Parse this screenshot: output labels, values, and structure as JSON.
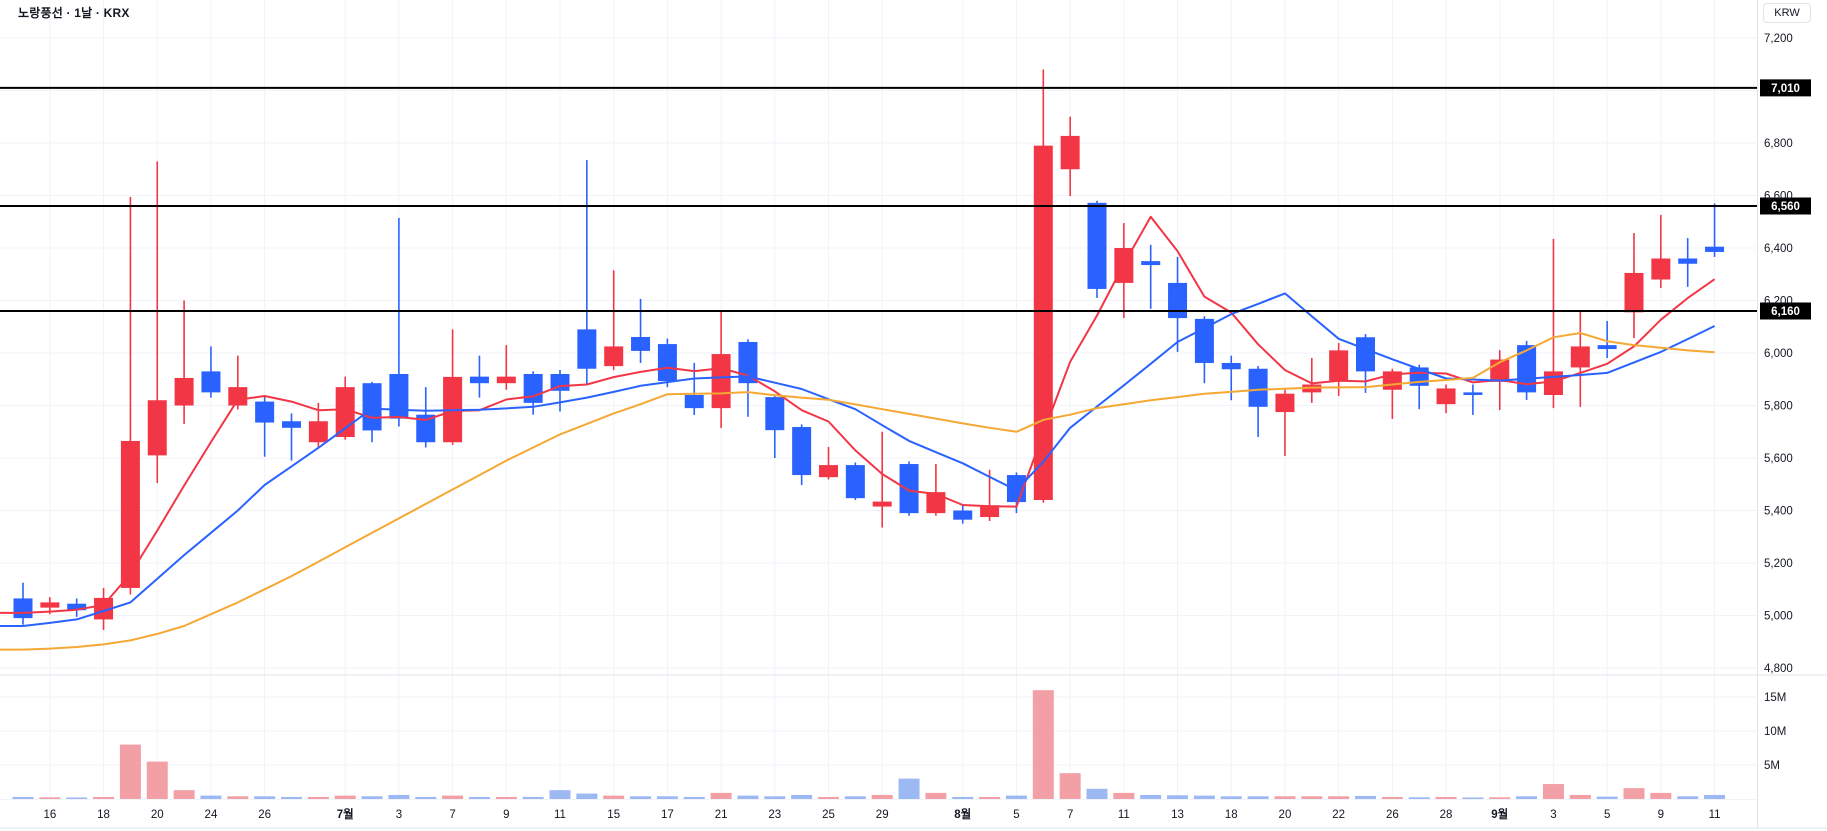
{
  "header": {
    "symbol_title": "노랑풍선 · 1날 · KRX"
  },
  "price_axis": {
    "currency_label": "KRW",
    "labels": [
      {
        "value": 7200,
        "label": "7,200"
      },
      {
        "value": 6800,
        "label": "6,800"
      },
      {
        "value": 6600,
        "label": "6,600"
      },
      {
        "value": 6400,
        "label": "6,400"
      },
      {
        "value": 6200,
        "label": "6,200"
      },
      {
        "value": 6000,
        "label": "6,000"
      },
      {
        "value": 5800,
        "label": "5,800"
      },
      {
        "value": 5600,
        "label": "5,600"
      },
      {
        "value": 5400,
        "label": "5,400"
      },
      {
        "value": 5200,
        "label": "5,200"
      },
      {
        "value": 5000,
        "label": "5,000"
      },
      {
        "value": 4800,
        "label": "4,800"
      }
    ],
    "grid_values": [
      4800,
      5000,
      5200,
      5400,
      5600,
      5800,
      6000,
      6200,
      6400,
      6600,
      6800,
      7000,
      7200
    ]
  },
  "volume_axis": {
    "ticks": [
      {
        "value": 15,
        "label": "15M"
      },
      {
        "value": 10,
        "label": "10M"
      },
      {
        "value": 5,
        "label": "5M"
      }
    ]
  },
  "colors": {
    "up": "#f23645",
    "down": "#2962ff",
    "vol_up": "#f2a0a6",
    "vol_down": "#9db9f4",
    "ma_fast": "#f23645",
    "ma_mid": "#2962ff",
    "ma_slow": "#f5a833",
    "grid": "#f0f3fa",
    "separator": "#e0e3eb",
    "axis_text": "#131722",
    "level_line": "#000000",
    "level_badge_bg": "#000000",
    "level_badge_text": "#ffffff"
  },
  "chart_data": {
    "type": "candlestick",
    "title": "노랑풍선 · 1날 · KRX",
    "symbol": "노랑풍선",
    "interval": "1날",
    "exchange": "KRX",
    "currency": "KRW",
    "ylim": [
      4800,
      7230
    ],
    "price_grid_step": 200,
    "grid": true,
    "legend_position": "none",
    "volume_unit": "M",
    "horizontal_levels": [
      {
        "price": 7010,
        "label": "7,010"
      },
      {
        "price": 6560,
        "label": "6,560"
      },
      {
        "price": 6160,
        "label": "6,160"
      }
    ],
    "candles_format": [
      "date",
      "open",
      "high",
      "low",
      "close",
      "volume_millions"
    ],
    "candles": [
      [
        "6/13",
        5065,
        5125,
        4965,
        4990,
        0.3
      ],
      [
        "6/16",
        5030,
        5070,
        5005,
        5050,
        0.25
      ],
      [
        "6/17",
        5045,
        5065,
        4995,
        5020,
        0.2
      ],
      [
        "6/18",
        4985,
        5105,
        4945,
        5067,
        0.3
      ],
      [
        "6/19",
        5105,
        6595,
        5080,
        5665,
        8.0
      ],
      [
        "6/20",
        5610,
        6730,
        5505,
        5820,
        5.5
      ],
      [
        "6/23",
        5800,
        6200,
        5730,
        5905,
        1.3
      ],
      [
        "6/24",
        5930,
        6025,
        5830,
        5850,
        0.5
      ],
      [
        "6/25",
        5800,
        5990,
        5785,
        5870,
        0.4
      ],
      [
        "6/26",
        5815,
        5835,
        5605,
        5735,
        0.4
      ],
      [
        "6/27",
        5740,
        5770,
        5590,
        5715,
        0.3
      ],
      [
        "6/30",
        5660,
        5810,
        5640,
        5740,
        0.3
      ],
      [
        "7/1",
        5680,
        5910,
        5670,
        5870,
        0.5
      ],
      [
        "7/2",
        5885,
        5890,
        5660,
        5705,
        0.4
      ],
      [
        "7/3",
        5920,
        6515,
        5720,
        5750,
        0.6
      ],
      [
        "7/4",
        5765,
        5870,
        5640,
        5660,
        0.3
      ],
      [
        "7/7",
        5660,
        6090,
        5650,
        5909,
        0.5
      ],
      [
        "7/8",
        5910,
        5990,
        5830,
        5885,
        0.3
      ],
      [
        "7/9",
        5885,
        6030,
        5860,
        5910,
        0.3
      ],
      [
        "7/10",
        5920,
        5930,
        5765,
        5810,
        0.3
      ],
      [
        "7/11",
        5920,
        5935,
        5777,
        5856,
        1.3
      ],
      [
        "7/14",
        6090,
        6735,
        5878,
        5940,
        0.8
      ],
      [
        "7/15",
        5950,
        6315,
        5935,
        6025,
        0.5
      ],
      [
        "7/16",
        6061,
        6206,
        5962,
        6008,
        0.4
      ],
      [
        "7/17",
        6034,
        6055,
        5870,
        5893,
        0.4
      ],
      [
        "7/18",
        5840,
        5962,
        5764,
        5790,
        0.3
      ],
      [
        "7/21",
        5790,
        6164,
        5714,
        5996,
        0.9
      ],
      [
        "7/22",
        6042,
        6052,
        5757,
        5885,
        0.5
      ],
      [
        "7/23",
        5832,
        5842,
        5600,
        5706,
        0.4
      ],
      [
        "7/24",
        5718,
        5728,
        5497,
        5535,
        0.6
      ],
      [
        "7/25",
        5527,
        5642,
        5518,
        5573,
        0.3
      ],
      [
        "7/28",
        5573,
        5583,
        5440,
        5447,
        0.4
      ],
      [
        "7/29",
        5415,
        5700,
        5335,
        5434,
        0.6
      ],
      [
        "7/30",
        5577,
        5587,
        5380,
        5390,
        3.0
      ],
      [
        "7/31",
        5390,
        5577,
        5380,
        5470,
        0.9
      ],
      [
        "8/1",
        5400,
        5420,
        5350,
        5365,
        0.3
      ],
      [
        "8/4",
        5375,
        5555,
        5360,
        5420,
        0.3
      ],
      [
        "8/5",
        5535,
        5545,
        5390,
        5432,
        0.5
      ],
      [
        "8/6",
        5440,
        7080,
        5430,
        6790,
        16.0
      ],
      [
        "8/7",
        6700,
        6900,
        6598,
        6827,
        3.8
      ],
      [
        "8/8",
        6572,
        6580,
        6210,
        6244,
        1.5
      ],
      [
        "8/11",
        6267,
        6495,
        6133,
        6400,
        0.9
      ],
      [
        "8/12",
        6350,
        6412,
        6168,
        6335,
        0.6
      ],
      [
        "8/13",
        6267,
        6366,
        6004,
        6133,
        0.55
      ],
      [
        "8/14",
        6130,
        6140,
        5885,
        5962,
        0.5
      ],
      [
        "8/18",
        5962,
        5990,
        5820,
        5938,
        0.4
      ],
      [
        "8/19",
        5940,
        5950,
        5680,
        5795,
        0.4
      ],
      [
        "8/20",
        5775,
        5860,
        5608,
        5845,
        0.4
      ],
      [
        "8/21",
        5850,
        5981,
        5810,
        5880,
        0.4
      ],
      [
        "8/22",
        5895,
        6038,
        5836,
        6010,
        0.4
      ],
      [
        "8/25",
        6060,
        6072,
        5848,
        5930,
        0.45
      ],
      [
        "8/26",
        5860,
        5940,
        5749,
        5930,
        0.3
      ],
      [
        "8/27",
        5945,
        5955,
        5786,
        5875,
        0.25
      ],
      [
        "8/28",
        5805,
        5880,
        5771,
        5865,
        0.3
      ],
      [
        "8/29",
        5850,
        5880,
        5764,
        5840,
        0.15
      ],
      [
        "9/1",
        5890,
        6011,
        5783,
        5975,
        0.25
      ],
      [
        "9/2",
        6030,
        6046,
        5821,
        5850,
        0.4
      ],
      [
        "9/3",
        5840,
        6435,
        5790,
        5930,
        2.2
      ],
      [
        "9/4",
        5945,
        6164,
        5795,
        6025,
        0.6
      ],
      [
        "9/5",
        6030,
        6122,
        5981,
        6015,
        0.35
      ],
      [
        "9/8",
        6155,
        6457,
        6057,
        6305,
        1.6
      ],
      [
        "9/9",
        6280,
        6526,
        6248,
        6360,
        0.9
      ],
      [
        "9/10",
        6360,
        6438,
        6252,
        6340,
        0.4
      ],
      [
        "9/11",
        6405,
        6570,
        6366,
        6385,
        0.6
      ]
    ],
    "time_ticks": [
      {
        "i": 1,
        "label": "16",
        "bold": false
      },
      {
        "i": 3,
        "label": "18",
        "bold": false
      },
      {
        "i": 5,
        "label": "20",
        "bold": false
      },
      {
        "i": 7,
        "label": "24",
        "bold": false
      },
      {
        "i": 9,
        "label": "26",
        "bold": false
      },
      {
        "i": 12,
        "label": "7월",
        "bold": true
      },
      {
        "i": 14,
        "label": "3",
        "bold": false
      },
      {
        "i": 16,
        "label": "7",
        "bold": false
      },
      {
        "i": 18,
        "label": "9",
        "bold": false
      },
      {
        "i": 20,
        "label": "11",
        "bold": false
      },
      {
        "i": 22,
        "label": "15",
        "bold": false
      },
      {
        "i": 24,
        "label": "17",
        "bold": false
      },
      {
        "i": 26,
        "label": "21",
        "bold": false
      },
      {
        "i": 28,
        "label": "23",
        "bold": false
      },
      {
        "i": 30,
        "label": "25",
        "bold": false
      },
      {
        "i": 32,
        "label": "29",
        "bold": false
      },
      {
        "i": 35,
        "label": "8월",
        "bold": true
      },
      {
        "i": 37,
        "label": "5",
        "bold": false
      },
      {
        "i": 39,
        "label": "7",
        "bold": false
      },
      {
        "i": 41,
        "label": "11",
        "bold": false
      },
      {
        "i": 43,
        "label": "13",
        "bold": false
      },
      {
        "i": 45,
        "label": "18",
        "bold": false
      },
      {
        "i": 47,
        "label": "20",
        "bold": false
      },
      {
        "i": 49,
        "label": "22",
        "bold": false
      },
      {
        "i": 51,
        "label": "26",
        "bold": false
      },
      {
        "i": 53,
        "label": "28",
        "bold": false
      },
      {
        "i": 55,
        "label": "9월",
        "bold": true
      },
      {
        "i": 57,
        "label": "3",
        "bold": false
      },
      {
        "i": 59,
        "label": "5",
        "bold": false
      },
      {
        "i": 61,
        "label": "9",
        "bold": false
      },
      {
        "i": 63,
        "label": "11",
        "bold": false
      }
    ],
    "moving_averages": [
      {
        "name": "MA5",
        "color_key": "ma_fast",
        "values": [
          5010,
          5015,
          5022,
          5040,
          5158,
          5324,
          5495,
          5661,
          5822,
          5836,
          5815,
          5782,
          5786,
          5753,
          5756,
          5745,
          5779,
          5782,
          5823,
          5835,
          5874,
          5880,
          5908,
          5928,
          5944,
          5931,
          5942,
          5914,
          5854,
          5782,
          5739,
          5629,
          5539,
          5476,
          5463,
          5421,
          5416,
          5415,
          5695,
          5967,
          6143,
          6339,
          6519,
          6388,
          6215,
          6154,
          6033,
          5935,
          5884,
          5894,
          5892,
          5919,
          5925,
          5922,
          5888,
          5897,
          5881,
          5892,
          5924,
          5959,
          6025,
          6127,
          6209,
          6281
        ]
      },
      {
        "name": "MA10",
        "color_key": "ma_mid",
        "values": [
          4960,
          4972,
          4985,
          5017,
          5050,
          5140,
          5230,
          5315,
          5400,
          5497,
          5568,
          5639,
          5713,
          5788,
          5784,
          5780,
          5782,
          5784,
          5789,
          5795,
          5812,
          5830,
          5852,
          5875,
          5889,
          5903,
          5907,
          5911,
          5887,
          5863,
          5824,
          5786,
          5725,
          5665,
          5622,
          5580,
          5528,
          5477,
          5586,
          5715,
          5796,
          5877,
          5959,
          6042,
          6095,
          6148,
          6187,
          6227,
          6140,
          6054,
          6015,
          5976,
          5939,
          5903,
          5899,
          5895,
          5902,
          5909,
          5916,
          5924,
          5964,
          6004,
          6053,
          6103
        ]
      },
      {
        "name": "MA20",
        "color_key": "ma_slow",
        "values": [
          4870,
          4874,
          4880,
          4890,
          4905,
          4930,
          4960,
          5005,
          5050,
          5100,
          5150,
          5205,
          5260,
          5315,
          5370,
          5425,
          5480,
          5535,
          5590,
          5640,
          5690,
          5730,
          5770,
          5805,
          5843,
          5845,
          5846,
          5851,
          5839,
          5830,
          5822,
          5804,
          5786,
          5768,
          5750,
          5732,
          5715,
          5700,
          5745,
          5765,
          5790,
          5805,
          5820,
          5832,
          5845,
          5852,
          5860,
          5864,
          5868,
          5869,
          5870,
          5880,
          5890,
          5897,
          5905,
          5965,
          6010,
          6060,
          6076,
          6045,
          6030,
          6020,
          6010,
          6003
        ]
      }
    ]
  }
}
